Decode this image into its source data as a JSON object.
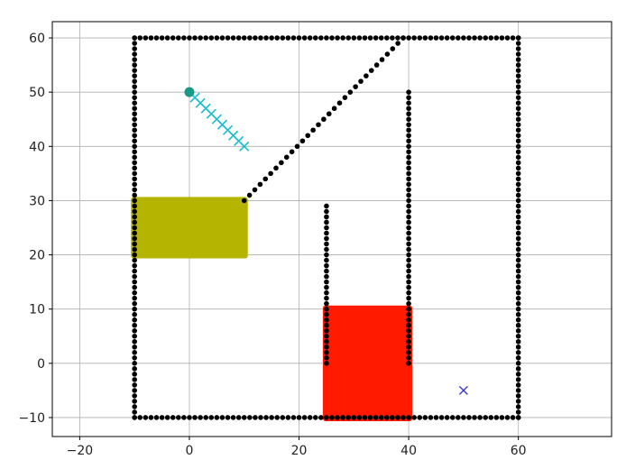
{
  "chart_data": {
    "type": "scatter",
    "title": "",
    "xlabel": "",
    "ylabel": "",
    "xlim": [
      -25,
      77
    ],
    "ylim": [
      -13.5,
      63
    ],
    "grid": true,
    "legend": "none",
    "x_ticks": [
      -20,
      0,
      20,
      40,
      60
    ],
    "y_ticks": [
      -10,
      0,
      10,
      20,
      30,
      40,
      50,
      60
    ],
    "colors": {
      "obstacle": "#000000",
      "start": "#1a9a86",
      "path": "#17becf",
      "goal": "#3333cc",
      "yellow_block": "#b5b400",
      "red_block": "#ff1a00",
      "grid": "#b0b0b0"
    },
    "obstacle_walls": [
      {
        "from": [
          -10,
          60
        ],
        "to": [
          60,
          60
        ]
      },
      {
        "from": [
          -10,
          -10
        ],
        "to": [
          60,
          -10
        ]
      },
      {
        "from": [
          -10,
          -10
        ],
        "to": [
          -10,
          60
        ]
      },
      {
        "from": [
          60,
          -10
        ],
        "to": [
          60,
          60
        ]
      },
      {
        "from": [
          10,
          30
        ],
        "to": [
          39,
          60
        ]
      },
      {
        "from": [
          25,
          0
        ],
        "to": [
          25,
          29
        ]
      },
      {
        "from": [
          40,
          0
        ],
        "to": [
          40,
          50
        ]
      }
    ],
    "filled_regions": [
      {
        "name": "yellow_block",
        "x": [
          -10,
          10
        ],
        "y": [
          20,
          30
        ]
      },
      {
        "name": "red_block",
        "x": [
          25,
          40
        ],
        "y": [
          -10,
          10
        ]
      }
    ],
    "start": {
      "x": 0,
      "y": 50
    },
    "path": [
      {
        "x": 1,
        "y": 49
      },
      {
        "x": 2,
        "y": 48
      },
      {
        "x": 3,
        "y": 47
      },
      {
        "x": 4,
        "y": 46
      },
      {
        "x": 5,
        "y": 45
      },
      {
        "x": 6,
        "y": 44
      },
      {
        "x": 7,
        "y": 43
      },
      {
        "x": 8,
        "y": 42
      },
      {
        "x": 9,
        "y": 41
      },
      {
        "x": 10,
        "y": 40
      }
    ],
    "goal": {
      "x": 50,
      "y": -5
    }
  }
}
